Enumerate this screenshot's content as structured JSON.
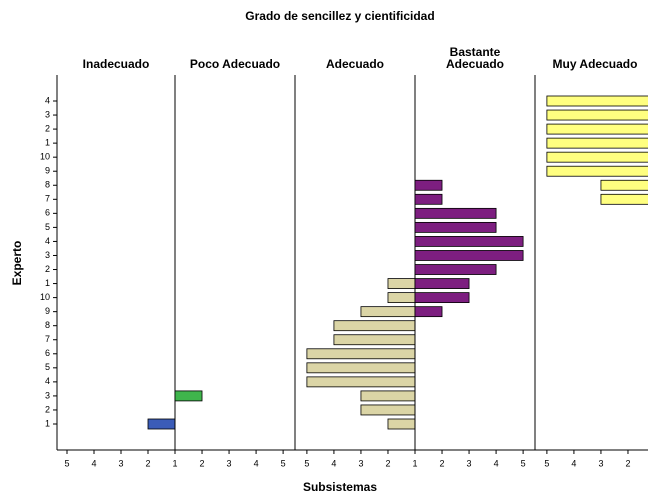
{
  "chart_data": {
    "type": "bar",
    "orientation": "horizontal",
    "title": "Grado de sencillez y cientificidad",
    "xlabel": "Subsistemas",
    "ylabel": "Experto",
    "categories": [
      "1",
      "2",
      "3",
      "4",
      "5",
      "6",
      "7",
      "8",
      "9",
      "10",
      "1",
      "2",
      "3",
      "4",
      "5",
      "6",
      "7",
      "8",
      "9",
      "10",
      "1",
      "2",
      "3",
      "4"
    ],
    "series": [
      {
        "name": "Inadecuado",
        "color": "#3b5cb8",
        "xlim": [
          5.37,
          1
        ],
        "xticks": [
          5,
          4,
          3,
          2,
          1
        ],
        "values": [
          2,
          null,
          null,
          null,
          null,
          null,
          null,
          null,
          null,
          null,
          null,
          null,
          null,
          null,
          null,
          null,
          null,
          null,
          null,
          null,
          null,
          null,
          null,
          null
        ]
      },
      {
        "name": "Poco Adecuado",
        "color": "#3fb54c",
        "xlim": [
          1,
          5.44
        ],
        "xticks": [
          2,
          3,
          4,
          5
        ],
        "values": [
          null,
          null,
          2,
          null,
          null,
          null,
          null,
          null,
          null,
          null,
          null,
          null,
          null,
          null,
          null,
          null,
          null,
          null,
          null,
          null,
          null,
          null,
          null,
          null
        ]
      },
      {
        "name": "Adecuado",
        "color": "#dbd5a6",
        "xlim": [
          5.44,
          1
        ],
        "xticks": [
          5,
          4,
          3,
          2,
          1
        ],
        "values": [
          2,
          3,
          3,
          5,
          5,
          5,
          4,
          4,
          3,
          2,
          2,
          null,
          null,
          null,
          null,
          null,
          null,
          null,
          null,
          null,
          null,
          null,
          null,
          null
        ]
      },
      {
        "name": "Bastante Adecuado",
        "color": "#7d1e80",
        "xlim": [
          1,
          5.44
        ],
        "xticks": [
          2,
          3,
          4,
          5
        ],
        "values": [
          null,
          null,
          null,
          null,
          null,
          null,
          null,
          null,
          2,
          3,
          3,
          4,
          5,
          5,
          4,
          4,
          2,
          2,
          null,
          null,
          null,
          null,
          null,
          null
        ]
      },
      {
        "name": "Muy Adecuado",
        "color": "#ffff80",
        "xlim": [
          5.44,
          1
        ],
        "xticks": [
          5,
          4,
          3,
          2
        ],
        "values": [
          null,
          null,
          null,
          null,
          null,
          null,
          null,
          null,
          null,
          null,
          null,
          null,
          null,
          null,
          null,
          null,
          3,
          3,
          5,
          5,
          5,
          5,
          5,
          5
        ]
      }
    ]
  }
}
